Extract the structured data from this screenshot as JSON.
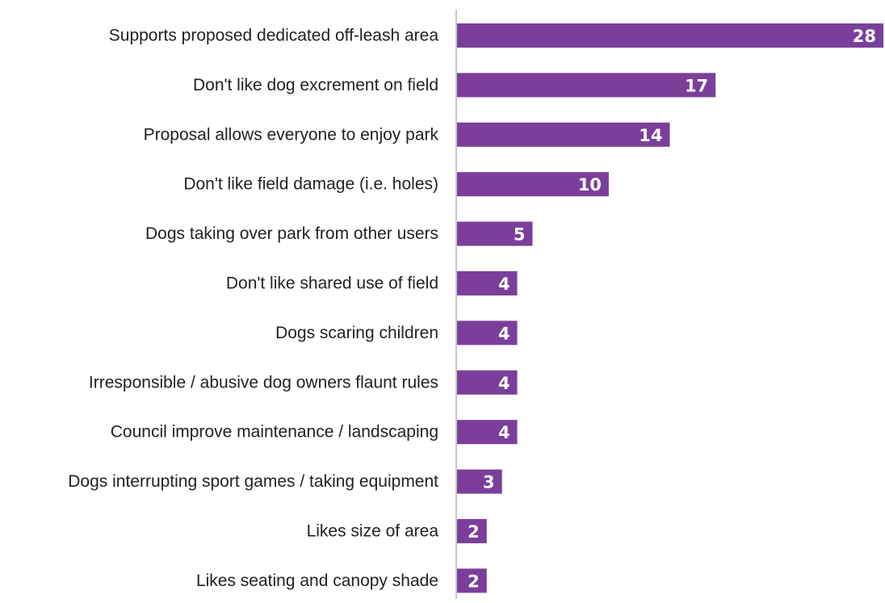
{
  "colors": {
    "bar": "#7b3f9b",
    "axis": "#b5b5b5",
    "label_text": "#222222",
    "value_text": "#ffffff"
  },
  "chart_data": {
    "type": "bar",
    "orientation": "horizontal",
    "categories": [
      "Supports proposed dedicated off-leash area",
      "Don't like dog excrement on field",
      "Proposal allows everyone to enjoy park",
      "Don't like field damage (i.e. holes)",
      "Dogs taking over park from other users",
      "Don't like shared use of field",
      "Dogs scaring children",
      "Irresponsible / abusive dog owners flaunt rules",
      "Council improve maintenance / landscaping",
      "Dogs interrupting sport games / taking equipment",
      "Likes size of area",
      "Likes seating and canopy shade"
    ],
    "values": [
      28,
      17,
      14,
      10,
      5,
      4,
      4,
      4,
      4,
      3,
      2,
      2
    ],
    "title": "",
    "xlabel": "",
    "ylabel": "",
    "xlim": [
      0,
      28
    ],
    "grid": false,
    "legend": "none",
    "data_labels": true
  }
}
